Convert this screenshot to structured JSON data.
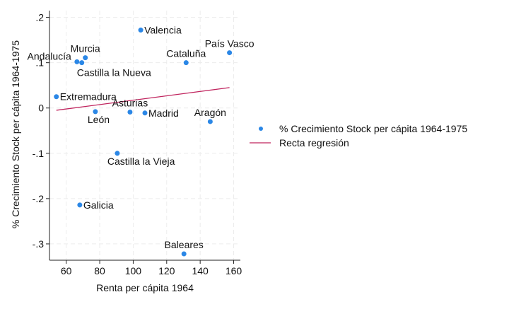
{
  "chart_data": {
    "type": "scatter",
    "xlabel": "Renta per cápita 1964",
    "ylabel": "% Crecimiento Stock per cápita 1964-1975",
    "xlim": [
      50,
      164
    ],
    "ylim": [
      -0.336,
      0.215
    ],
    "xticks": [
      60,
      80,
      100,
      120,
      140,
      160
    ],
    "xtick_labels": [
      "60",
      "80",
      "100",
      "120",
      "140",
      "160"
    ],
    "yticks": [
      0.2,
      0.1,
      0,
      -0.1,
      -0.2,
      -0.3
    ],
    "ytick_labels": [
      ".2",
      ".1",
      "0",
      "-.1",
      "-.2",
      "-.3"
    ],
    "grid": true,
    "legend_placement": "right",
    "series": [
      {
        "name": "% Crecimiento Stock per cápita 1964-1975",
        "type": "scatter",
        "color": "#2b87e6",
        "points": [
          {
            "label": "Valencia",
            "x": 104.5,
            "y": 0.172,
            "label_pos": "right"
          },
          {
            "label": "País Vasco",
            "x": 157.5,
            "y": 0.122,
            "label_pos": "above"
          },
          {
            "label": "Cataluña",
            "x": 131.6,
            "y": 0.1,
            "label_pos": "above"
          },
          {
            "label": "Murcia",
            "x": 71.4,
            "y": 0.111,
            "label_pos": "above"
          },
          {
            "label": "Andalucía",
            "x": 66.4,
            "y": 0.102,
            "label_pos": "left"
          },
          {
            "label": "Castilla la Nueva",
            "x": 69.3,
            "y": 0.1,
            "label_pos": "below"
          },
          {
            "label": "Extremadura",
            "x": 54.1,
            "y": 0.025,
            "label_pos": "right"
          },
          {
            "label": "León",
            "x": 77.4,
            "y": -0.008,
            "label_pos": "below"
          },
          {
            "label": "Asturias",
            "x": 98.1,
            "y": -0.009,
            "label_pos": "above"
          },
          {
            "label": "Madrid",
            "x": 107.0,
            "y": -0.011,
            "label_pos": "right"
          },
          {
            "label": "Aragón",
            "x": 146.0,
            "y": -0.03,
            "label_pos": "above"
          },
          {
            "label": "Castilla la Vieja",
            "x": 90.5,
            "y": -0.1,
            "label_pos": "below"
          },
          {
            "label": "Galicia",
            "x": 68.1,
            "y": -0.214,
            "label_pos": "right"
          },
          {
            "label": "Baleares",
            "x": 130.3,
            "y": -0.322,
            "label_pos": "above"
          }
        ]
      },
      {
        "name": "Recta regresión",
        "type": "line",
        "color": "#c0245e",
        "points": [
          {
            "x": 54.1,
            "y": -0.005
          },
          {
            "x": 157.5,
            "y": 0.045
          }
        ]
      }
    ]
  }
}
